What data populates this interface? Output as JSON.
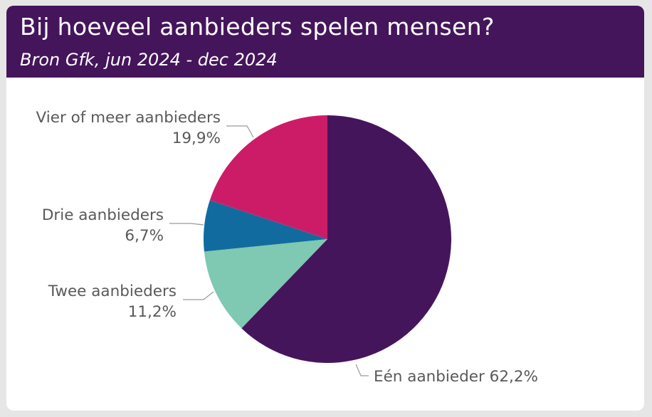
{
  "header": {
    "title": "Bij hoeveel aanbieders spelen mensen?",
    "subtitle": "Bron Gfk, jun 2024 - dec 2024"
  },
  "chart_data": {
    "type": "pie",
    "title": "Bij hoeveel aanbieders spelen mensen?",
    "subtitle": "Bron Gfk, jun 2024 - dec 2024",
    "slices": [
      {
        "label": "Eén aanbieder",
        "value": 62.2,
        "value_label": "62,2%",
        "color": "#45155c"
      },
      {
        "label": "Twee aanbieders",
        "value": 11.2,
        "value_label": "11,2%",
        "color": "#7fc8b2"
      },
      {
        "label": "Drie aanbieders",
        "value": 6.7,
        "value_label": "6,7%",
        "color": "#126b9e"
      },
      {
        "label": "Vier of meer aanbieders",
        "value": 19.9,
        "value_label": "19,9%",
        "color": "#cc1c67"
      }
    ]
  }
}
